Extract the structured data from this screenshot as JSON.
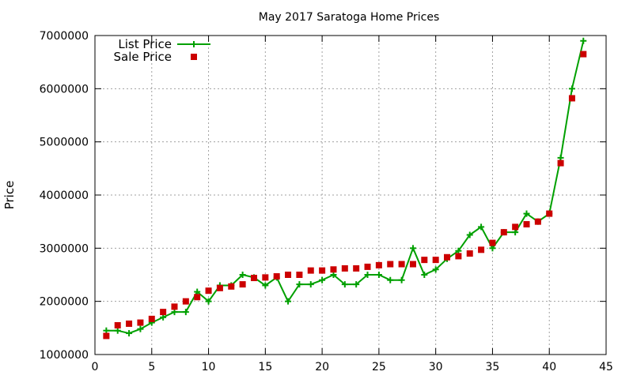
{
  "chart_data": {
    "type": "line",
    "title": "May 2017 Saratoga Home Prices",
    "xlabel": "",
    "ylabel": "Price",
    "xlim": [
      0,
      45
    ],
    "ylim": [
      1000000,
      7000000
    ],
    "xticks": [
      0,
      5,
      10,
      15,
      20,
      25,
      30,
      35,
      40,
      45
    ],
    "yticks": [
      1000000,
      2000000,
      3000000,
      4000000,
      5000000,
      6000000,
      7000000
    ],
    "grid": true,
    "legend_position": "top-left",
    "x": [
      1,
      2,
      3,
      4,
      5,
      6,
      7,
      8,
      9,
      10,
      11,
      12,
      13,
      14,
      15,
      16,
      17,
      18,
      19,
      20,
      21,
      22,
      23,
      24,
      25,
      26,
      27,
      28,
      29,
      30,
      31,
      32,
      33,
      34,
      35,
      36,
      37,
      38,
      39,
      40,
      41,
      42,
      43
    ],
    "series": [
      {
        "name": "List Price",
        "style": "lines+points",
        "marker": "plus",
        "color": "#00a000",
        "values": [
          1450000,
          1450000,
          1400000,
          1480000,
          1600000,
          1700000,
          1800000,
          1800000,
          2180000,
          2000000,
          2300000,
          2300000,
          2500000,
          2450000,
          2300000,
          2450000,
          2000000,
          2320000,
          2320000,
          2400000,
          2500000,
          2320000,
          2320000,
          2500000,
          2500000,
          2400000,
          2400000,
          3000000,
          2500000,
          2600000,
          2800000,
          2950000,
          3250000,
          3400000,
          3000000,
          3300000,
          3300000,
          3650000,
          3500000,
          3650000,
          4700000,
          6000000,
          6900000
        ]
      },
      {
        "name": "Sale Price",
        "style": "points",
        "marker": "square",
        "color": "#cc0000",
        "values": [
          1350000,
          1550000,
          1580000,
          1600000,
          1670000,
          1800000,
          1900000,
          2000000,
          2080000,
          2200000,
          2250000,
          2280000,
          2320000,
          2440000,
          2450000,
          2470000,
          2500000,
          2500000,
          2580000,
          2580000,
          2600000,
          2620000,
          2620000,
          2650000,
          2680000,
          2700000,
          2700000,
          2700000,
          2780000,
          2780000,
          2830000,
          2850000,
          2900000,
          2970000,
          3100000,
          3300000,
          3400000,
          3450000,
          3500000,
          3650000,
          4600000,
          5820000,
          6650000
        ]
      }
    ]
  }
}
